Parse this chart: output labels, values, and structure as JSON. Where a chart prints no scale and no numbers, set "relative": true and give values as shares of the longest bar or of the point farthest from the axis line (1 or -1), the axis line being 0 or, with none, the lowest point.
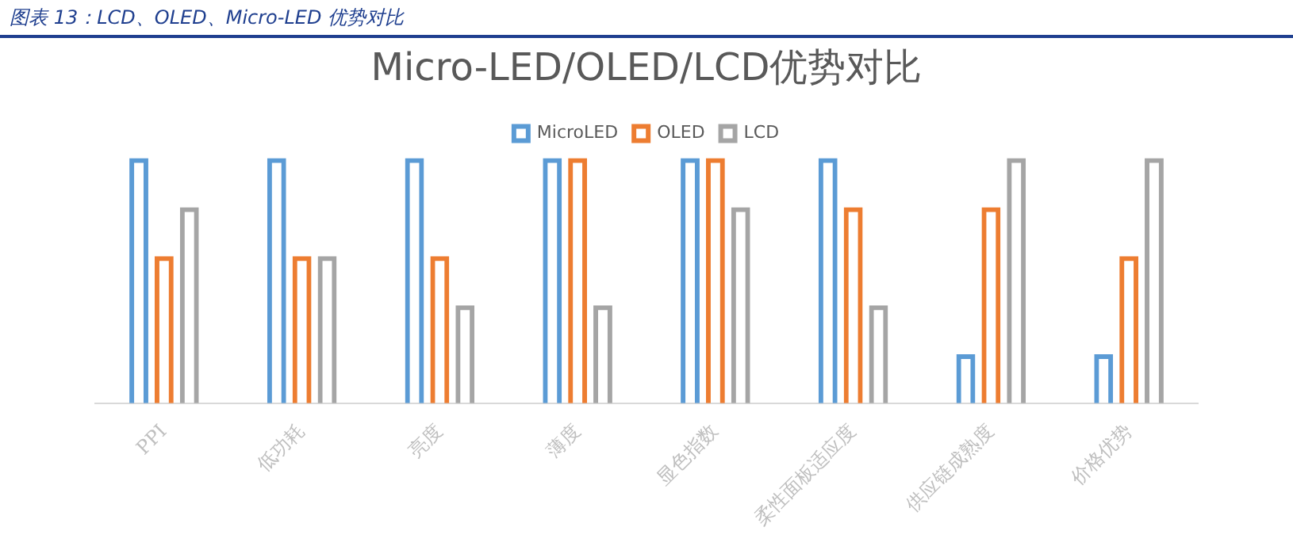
{
  "chart_data": {
    "type": "bar",
    "title": "Micro-LED/OLED/LCD优势对比",
    "annotations": [
      "图表 13：LCD、OLED、Micro-LED 优势对比"
    ],
    "categories": [
      "PPI",
      "低功耗",
      "亮度",
      "薄度",
      "显色指数",
      "柔性面板适应度",
      "供应链成熟度",
      "价格优势"
    ],
    "relative": true,
    "legend": "top",
    "series": [
      {
        "name": "MicroLED",
        "color": "#5b9bd5",
        "values": [
          1,
          1,
          1,
          1,
          1,
          1,
          0.2,
          0.2
        ]
      },
      {
        "name": "OLED",
        "color": "#ed7d31",
        "values": [
          0.6,
          0.6,
          0.6,
          1,
          1,
          0.8,
          0.8,
          0.6
        ]
      },
      {
        "name": "LCD",
        "color": "#a5a5a5",
        "values": [
          0.8,
          0.6,
          0.4,
          0.4,
          0.8,
          0.4,
          1,
          1
        ]
      }
    ]
  }
}
